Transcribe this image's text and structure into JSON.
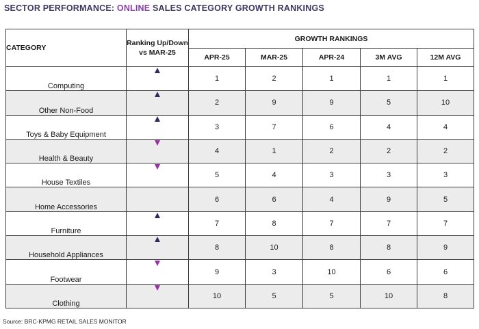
{
  "title": {
    "prefix": "SECTOR PERFORMANCE: ",
    "highlight": "ONLINE",
    "suffix": " SALES CATEGORY GROWTH RANKINGS"
  },
  "headers": {
    "category": "CATEGORY",
    "ranking": "Ranking Up/Down vs MAR-25",
    "growth": "GROWTH RANKINGS",
    "columns": [
      "APR-25",
      "MAR-25",
      "APR-24",
      "3M AVG",
      "12M AVG"
    ]
  },
  "rows": [
    {
      "category": "Computing",
      "trend": "up",
      "values": [
        "1",
        "2",
        "1",
        "1",
        "1"
      ]
    },
    {
      "category": "Other Non-Food",
      "trend": "up",
      "values": [
        "2",
        "9",
        "9",
        "5",
        "10"
      ]
    },
    {
      "category": "Toys & Baby Equipment",
      "trend": "up",
      "values": [
        "3",
        "7",
        "6",
        "4",
        "4"
      ]
    },
    {
      "category": "Health & Beauty",
      "trend": "down",
      "values": [
        "4",
        "1",
        "2",
        "2",
        "2"
      ]
    },
    {
      "category": "House Textiles",
      "trend": "down",
      "values": [
        "5",
        "4",
        "3",
        "3",
        "3"
      ]
    },
    {
      "category": "Home Accessories",
      "trend": "none",
      "values": [
        "6",
        "6",
        "4",
        "9",
        "5"
      ]
    },
    {
      "category": "Furniture",
      "trend": "up",
      "values": [
        "7",
        "8",
        "7",
        "7",
        "7"
      ]
    },
    {
      "category": "Household Appliances",
      "trend": "up",
      "values": [
        "8",
        "10",
        "8",
        "8",
        "9"
      ]
    },
    {
      "category": "Footwear",
      "trend": "down",
      "values": [
        "9",
        "3",
        "10",
        "6",
        "6"
      ]
    },
    {
      "category": "Clothing",
      "trend": "down",
      "values": [
        "10",
        "5",
        "5",
        "10",
        "8"
      ]
    }
  ],
  "source": "Source: BRC-KPMG RETAIL SALES MONITOR",
  "colors": {
    "up": "#2e2a5a",
    "down": "#9b2fa6",
    "title": "#3d3560",
    "highlight": "#8a3fa6",
    "alt_row": "#ececec"
  }
}
